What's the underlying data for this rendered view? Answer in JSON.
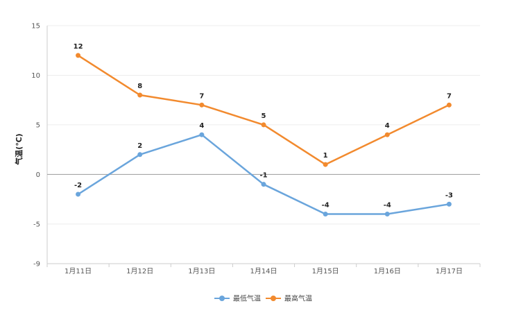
{
  "chart_data": {
    "type": "line",
    "title": "",
    "xlabel": "",
    "ylabel": "气温(℃)",
    "categories": [
      "1月11日",
      "1月12日",
      "1月13日",
      "1月14日",
      "1月15日",
      "1月16日",
      "1月17日"
    ],
    "y_ticks": [
      15,
      10,
      5,
      0,
      -5,
      -9
    ],
    "ylim": [
      -9,
      15
    ],
    "grid": true,
    "legend_position": "bottom-center",
    "series": [
      {
        "name": "最低气温",
        "color": "#6aa5dc",
        "values": [
          -2,
          2,
          4,
          -1,
          -4,
          -4,
          -3
        ]
      },
      {
        "name": "最高气温",
        "color": "#f28a2e",
        "values": [
          12,
          8,
          7,
          5,
          1,
          4,
          7
        ]
      }
    ]
  }
}
